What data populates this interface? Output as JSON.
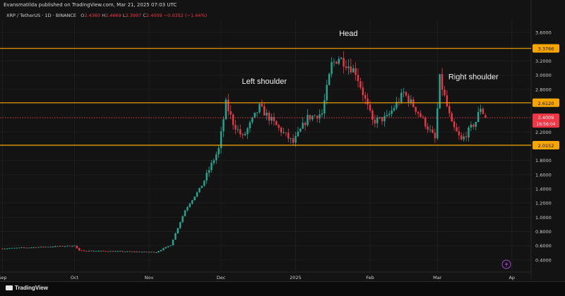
{
  "header": {
    "publisher": "Evansmatilda published on TradingView.com, Mar 21, 2025 07:03 UTC",
    "symbol": "XRP / TetherUS · 1D · BINANCE",
    "open_label": "O",
    "open": "2.4360",
    "high_label": "H",
    "high": "2.4669",
    "low_label": "L",
    "low": "2.3997",
    "close_label": "C",
    "close": "2.4009",
    "change": "−0.0352 (−1.44%)"
  },
  "footer": {
    "brand": "TradingView"
  },
  "colors": {
    "background": "#131313",
    "up": "#22ab94",
    "down": "#f23645",
    "level": "#f7a600",
    "axis_text": "#cfcfcf"
  },
  "chart_data": {
    "type": "candlestick",
    "y_axis_ticks": [
      "3.6000",
      "3.4000",
      "3.2000",
      "3.0000",
      "2.8000",
      "2.6000",
      "2.4000",
      "2.2000",
      "2.0000",
      "1.8000",
      "1.6000",
      "1.4000",
      "1.2000",
      "1.0000",
      "0.8000",
      "0.6000",
      "0.4000"
    ],
    "ylim": [
      0.25,
      3.78
    ],
    "x_axis_ticks": [
      "Sep",
      "Oct",
      "Nov",
      "Dec",
      "2025",
      "Feb",
      "Mar",
      "Ap"
    ],
    "x_tick_dates": [
      "2024-09-01",
      "2024-10-01",
      "2024-11-01",
      "2024-12-01",
      "2025-01-01",
      "2025-02-01",
      "2025-03-01",
      "2025-04-01"
    ],
    "xlim": [
      "2024-08-31",
      "2025-04-09"
    ],
    "levels": [
      {
        "value": 3.3766,
        "label": "3.3766"
      },
      {
        "value": 2.612,
        "label": "2.6120"
      },
      {
        "value": 2.0152,
        "label": "2.0152"
      }
    ],
    "last_price": {
      "value": 2.4009,
      "label": "2.4009",
      "countdown": "16:56:04"
    },
    "annotations": [
      {
        "text": "Head",
        "date": "2025-01-23",
        "price": 3.55
      },
      {
        "text": "Left shoulder",
        "date": "2024-12-19",
        "price": 2.88
      },
      {
        "text": "Right shoulder",
        "date": "2025-03-16",
        "price": 2.94
      }
    ],
    "ohlc_daily_anchors": [
      {
        "date": "2024-09-01",
        "close": 0.56
      },
      {
        "date": "2024-10-01",
        "close": 0.6
      },
      {
        "date": "2024-10-03",
        "close": 0.53
      },
      {
        "date": "2024-11-04",
        "close": 0.51
      },
      {
        "date": "2024-11-10",
        "close": 0.61
      },
      {
        "date": "2024-11-16",
        "close": 1.1
      },
      {
        "date": "2024-11-23",
        "close": 1.45
      },
      {
        "date": "2024-11-30",
        "close": 1.96
      },
      {
        "date": "2024-12-03",
        "close": 2.6
      },
      {
        "date": "2024-12-06",
        "close": 2.33
      },
      {
        "date": "2024-12-10",
        "close": 2.12
      },
      {
        "date": "2024-12-17",
        "close": 2.55
      },
      {
        "date": "2024-12-25",
        "close": 2.25
      },
      {
        "date": "2024-12-31",
        "close": 2.05
      },
      {
        "date": "2025-01-06",
        "close": 2.4
      },
      {
        "date": "2025-01-12",
        "close": 2.46
      },
      {
        "date": "2025-01-16",
        "close": 3.15
      },
      {
        "date": "2025-01-19",
        "close": 3.25
      },
      {
        "date": "2025-01-26",
        "close": 3.05
      },
      {
        "date": "2025-02-02",
        "close": 2.35
      },
      {
        "date": "2025-02-08",
        "close": 2.4
      },
      {
        "date": "2025-02-15",
        "close": 2.75
      },
      {
        "date": "2025-02-21",
        "close": 2.48
      },
      {
        "date": "2025-02-28",
        "close": 2.1
      },
      {
        "date": "2025-03-02",
        "close": 2.95
      },
      {
        "date": "2025-03-07",
        "close": 2.3
      },
      {
        "date": "2025-03-11",
        "close": 2.08
      },
      {
        "date": "2025-03-17",
        "close": 2.35
      },
      {
        "date": "2025-03-19",
        "close": 2.55
      },
      {
        "date": "2025-03-21",
        "close": 2.4009
      }
    ]
  }
}
